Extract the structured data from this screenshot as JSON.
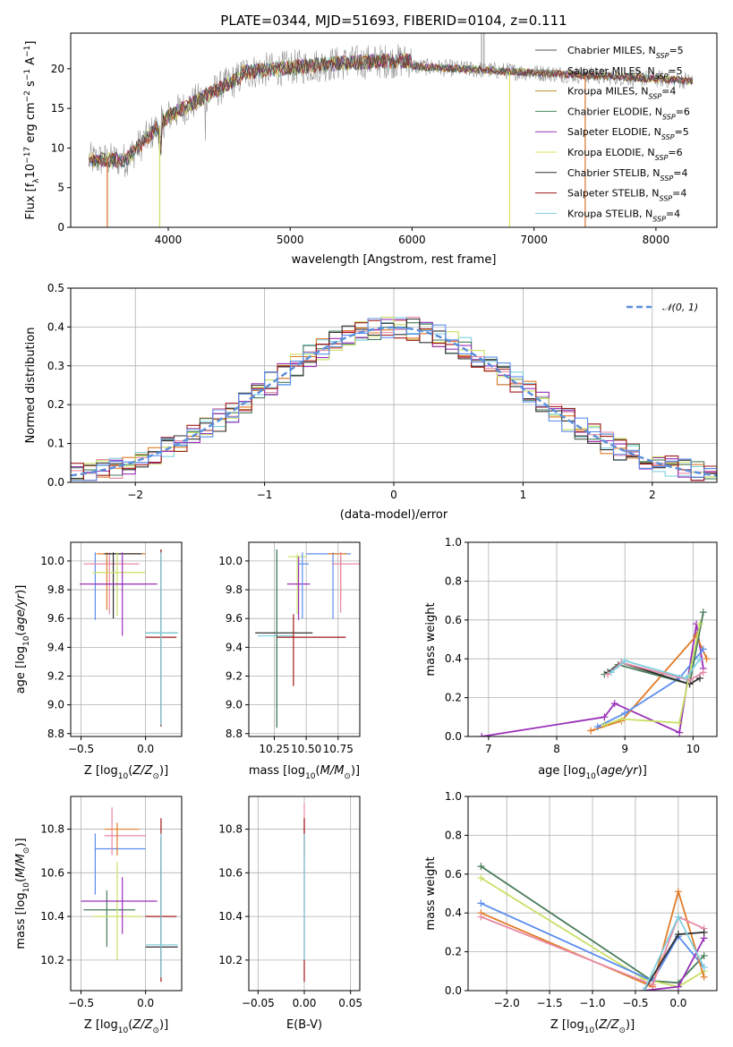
{
  "title": "PLATE=0344, MJD=51693, FIBERID=0104, z=0.111",
  "colors": [
    "#1f1f1f",
    "#808080",
    "#b8860b",
    "#2e8b57",
    "#9932cc",
    "#d4d400",
    "#333333",
    "#b22222",
    "#7fcfcf"
  ],
  "models": [
    {
      "name": "Chabrier MILES, N",
      "sub": "SSP",
      "suffix": "=5",
      "color": "#555555"
    },
    {
      "name": "Salpeter MILES, N",
      "sub": "SSP",
      "suffix": "=5",
      "color": "#999999"
    },
    {
      "name": "Kroupa MILES, N",
      "sub": "SSP",
      "suffix": "=4",
      "color": "#c0902a"
    },
    {
      "name": "Chabrier ELODIE, N",
      "sub": "SSP",
      "suffix": "=6",
      "color": "#4a8a5a"
    },
    {
      "name": "Salpeter ELODIE, N",
      "sub": "SSP",
      "suffix": "=5",
      "color": "#9a30b8"
    },
    {
      "name": "Kroupa ELODIE, N",
      "sub": "SSP",
      "suffix": "=6",
      "color": "#e0e060"
    },
    {
      "name": "Chabrier STELIB, N",
      "sub": "SSP",
      "suffix": "=4",
      "color": "#303030"
    },
    {
      "name": "Salpeter STELIB, N",
      "sub": "SSP",
      "suffix": "=4",
      "color": "#a01818"
    },
    {
      "name": "Kroupa STELIB, N",
      "sub": "SSP",
      "suffix": "=4",
      "color": "#80d0e0"
    }
  ],
  "chart_data": [
    {
      "id": "spectrum",
      "type": "line",
      "xlabel": "wavelength [Angstrom, rest frame]",
      "ylabel": "Flux [f_λ10^-17 erg cm^-2 s^-1 A^-1]",
      "xlim": [
        3200,
        8500
      ],
      "ylim": [
        0,
        24.5
      ],
      "xticks": [
        4000,
        5000,
        6000,
        7000,
        8000
      ],
      "yticks": [
        0,
        5,
        10,
        15,
        20
      ],
      "x_range": [
        3350,
        8300
      ],
      "legend": "right",
      "grid": false
    },
    {
      "id": "residuals",
      "type": "line",
      "xlabel": "(data-model)/error",
      "ylabel": "Normed distribution",
      "xlim": [
        -2.5,
        2.5
      ],
      "ylim": [
        0,
        0.5
      ],
      "xticks": [
        -2,
        -1,
        0,
        1,
        2
      ],
      "xtick_labels": [
        "−2",
        "−1",
        "0",
        "1",
        "2"
      ],
      "yticks": [
        0.0,
        0.1,
        0.2,
        0.3,
        0.4,
        0.5
      ],
      "ytick_labels": [
        "0.0",
        "0.1",
        "0.2",
        "0.3",
        "0.4",
        "0.5"
      ],
      "legend_label": "𝒩(0, 1)",
      "legend": "top-right",
      "grid": true
    },
    {
      "id": "age-vs-Z",
      "type": "scatter",
      "xlabel": "Z [log10(Z/Z⊙)]",
      "ylabel": "age [log10(age/yr)]",
      "xlim": [
        -0.58,
        0.28
      ],
      "ylim": [
        8.78,
        10.13
      ],
      "xticks": [
        -0.5,
        0.0
      ],
      "xtick_labels": [
        "−0.5",
        "0.0"
      ],
      "yticks": [
        8.8,
        9.0,
        9.2,
        9.4,
        9.6,
        9.8,
        10.0
      ],
      "ytick_labels": [
        "8.8",
        "9.0",
        "9.2",
        "9.4",
        "9.6",
        "9.8",
        "10.0"
      ],
      "grid": true,
      "points": [
        {
          "x": -0.39,
          "xerr": 0.0,
          "y": 9.84,
          "yerr": 0.25,
          "xl": -0.39,
          "xr": -0.0,
          "yb": 9.59,
          "yt": 10.06,
          "c": 0
        },
        {
          "x": -0.3,
          "xl": -0.38,
          "xr": -0.0,
          "y": 10.05,
          "yb": 9.66,
          "yt": 10.06,
          "c": 2
        },
        {
          "x": -0.28,
          "xl": -0.48,
          "xr": -0.05,
          "y": 9.98,
          "yb": 9.63,
          "yt": 10.06,
          "c": 1
        },
        {
          "x": -0.25,
          "xl": -0.32,
          "xr": -0.03,
          "y": 10.05,
          "yb": 9.6,
          "yt": 10.06,
          "c": 6
        },
        {
          "x": -0.22,
          "xl": -0.41,
          "xr": -0.0,
          "y": 9.92,
          "yb": 9.62,
          "yt": 10.06,
          "c": 5
        },
        {
          "x": -0.18,
          "xl": -0.51,
          "xr": 0.09,
          "y": 9.84,
          "yb": 9.48,
          "yt": 10.06,
          "c": 4
        },
        {
          "x": 0.12,
          "xl": 0.0,
          "xr": 0.25,
          "y": 9.5,
          "yb": 8.85,
          "yt": 10.08,
          "c": 3
        },
        {
          "x": 0.12,
          "xl": 0.0,
          "xr": 0.24,
          "y": 9.47,
          "yb": 8.85,
          "yt": 10.08,
          "c": 7
        },
        {
          "x": 0.12,
          "xl": 0.0,
          "xr": 0.25,
          "y": 9.5,
          "yb": 8.86,
          "yt": 10.06,
          "c": 8
        }
      ]
    },
    {
      "id": "age-vs-mass",
      "type": "scatter",
      "xlabel": "mass [log10(M/M⊙)]",
      "ylabel": "",
      "xlim": [
        10.05,
        10.92
      ],
      "ylim": [
        8.78,
        10.13
      ],
      "xticks": [
        10.25,
        10.5,
        10.75
      ],
      "xtick_labels": [
        "10.25",
        "10.50",
        "10.75"
      ],
      "yticks": [
        8.8,
        9.0,
        9.2,
        9.4,
        9.6,
        9.8,
        10.0
      ],
      "ytick_labels": [
        "8.8",
        "9.0",
        "9.2",
        "9.4",
        "9.6",
        "9.8",
        "10.0"
      ],
      "grid": true,
      "points": [
        {
          "x": 10.27,
          "xl": 10.1,
          "xr": 10.55,
          "y": 9.5,
          "yb": 8.85,
          "yt": 10.08,
          "c": 6
        },
        {
          "x": 10.27,
          "xl": 10.12,
          "xr": 10.4,
          "y": 9.48,
          "yb": 8.86,
          "yt": 10.08,
          "c": 8
        },
        {
          "x": 10.27,
          "xl": 10.27,
          "xr": 10.27,
          "y": 9.5,
          "yb": 8.84,
          "yt": 10.08,
          "c": 3
        },
        {
          "x": 10.4,
          "xl": 10.27,
          "xr": 10.81,
          "y": 9.47,
          "yb": 9.13,
          "yt": 9.63,
          "c": 7
        },
        {
          "x": 10.43,
          "xl": 10.36,
          "xr": 10.5,
          "y": 10.03,
          "yb": 9.63,
          "yt": 10.05,
          "c": 5
        },
        {
          "x": 10.44,
          "xl": 10.35,
          "xr": 10.53,
          "y": 9.84,
          "yb": 9.59,
          "yt": 10.03,
          "c": 4
        },
        {
          "x": 10.47,
          "xl": 10.44,
          "xr": 10.52,
          "y": 9.98,
          "yb": 9.6,
          "yt": 10.06,
          "c": 0
        },
        {
          "x": 10.71,
          "xl": 10.5,
          "xr": 10.85,
          "y": 10.05,
          "yb": 9.6,
          "yt": 10.06,
          "c": 0
        },
        {
          "x": 10.77,
          "xl": 10.67,
          "xr": 10.82,
          "y": 10.05,
          "yb": 9.72,
          "yt": 10.06,
          "c": 2
        },
        {
          "x": 10.77,
          "xl": 10.7,
          "xr": 10.92,
          "y": 9.98,
          "yb": 9.64,
          "yt": 10.06,
          "c": 1
        }
      ]
    },
    {
      "id": "mass-weight-vs-age",
      "type": "line",
      "xlabel": "age [log10(age/yr)]",
      "ylabel": "mass weight",
      "xlim": [
        6.7,
        10.35
      ],
      "ylim": [
        0,
        1.0
      ],
      "xticks": [
        7,
        8,
        9,
        10
      ],
      "xtick_labels": [
        "7",
        "8",
        "9",
        "10"
      ],
      "yticks": [
        0.0,
        0.2,
        0.4,
        0.6,
        0.8,
        1.0
      ],
      "ytick_labels": [
        "0.0",
        "0.2",
        "0.4",
        "0.6",
        "0.8",
        "1.0"
      ],
      "grid": true,
      "series": [
        {
          "c": 4,
          "x": [
            6.9,
            8.7,
            8.85,
            9.8,
            10.05,
            10.15
          ],
          "y": [
            0.0,
            0.1,
            0.17,
            0.02,
            0.58,
            0.35
          ]
        },
        {
          "c": 2,
          "x": [
            8.5,
            8.95,
            10.05,
            10.2
          ],
          "y": [
            0.03,
            0.08,
            0.52,
            0.4
          ]
        },
        {
          "c": 0,
          "x": [
            8.6,
            9.0,
            9.8,
            10.15
          ],
          "y": [
            0.05,
            0.12,
            0.3,
            0.45
          ]
        },
        {
          "c": 3,
          "x": [
            8.7,
            8.9,
            9.95,
            10.15
          ],
          "y": [
            0.32,
            0.37,
            0.27,
            0.64
          ]
        },
        {
          "c": 6,
          "x": [
            8.75,
            8.95,
            9.95,
            10.1
          ],
          "y": [
            0.33,
            0.38,
            0.27,
            0.3
          ]
        },
        {
          "c": 5,
          "x": [
            8.7,
            8.95,
            9.8,
            10.1
          ],
          "y": [
            0.06,
            0.09,
            0.07,
            0.58
          ]
        },
        {
          "c": 1,
          "x": [
            8.75,
            8.95,
            9.95,
            10.15
          ],
          "y": [
            0.32,
            0.38,
            0.29,
            0.33
          ]
        },
        {
          "c": 8,
          "x": [
            8.8,
            9.0,
            9.9,
            10.1
          ],
          "y": [
            0.33,
            0.39,
            0.3,
            0.4
          ]
        }
      ]
    },
    {
      "id": "mass-vs-Z",
      "type": "scatter",
      "xlabel": "Z [log10(Z/Z⊙)]",
      "ylabel": "mass [log10(M/M⊙)]",
      "xlim": [
        -0.58,
        0.28
      ],
      "ylim": [
        10.06,
        10.95
      ],
      "xticks": [
        -0.5,
        0.0
      ],
      "xtick_labels": [
        "−0.5",
        "0.0"
      ],
      "yticks": [
        10.2,
        10.4,
        10.6,
        10.8
      ],
      "ytick_labels": [
        "10.2",
        "10.4",
        "10.6",
        "10.8"
      ],
      "grid": true,
      "points": [
        {
          "x": -0.39,
          "xl": -0.39,
          "xr": -0.0,
          "y": 10.71,
          "yb": 10.5,
          "yt": 10.78,
          "c": 0
        },
        {
          "x": -0.26,
          "xl": -0.32,
          "xr": -0.0,
          "y": 10.77,
          "yb": 10.68,
          "yt": 10.9,
          "c": 1
        },
        {
          "x": -0.22,
          "xl": -0.32,
          "xr": -0.05,
          "y": 10.8,
          "yb": 10.68,
          "yt": 10.83,
          "c": 2
        },
        {
          "x": -0.3,
          "xl": -0.48,
          "xr": -0.08,
          "y": 10.43,
          "yb": 10.26,
          "yt": 10.52,
          "c": 3
        },
        {
          "x": -0.22,
          "xl": -0.41,
          "xr": -0.03,
          "y": 10.4,
          "yb": 10.2,
          "yt": 10.65,
          "c": 5
        },
        {
          "x": -0.18,
          "xl": -0.5,
          "xr": 0.09,
          "y": 10.47,
          "yb": 10.32,
          "yt": 10.58,
          "c": 4
        },
        {
          "x": 0.12,
          "xl": 0.0,
          "xr": 0.24,
          "y": 10.4,
          "yb": 10.1,
          "yt": 10.85,
          "c": 7
        },
        {
          "x": 0.12,
          "xl": 0.0,
          "xr": 0.25,
          "y": 10.26,
          "yb": 10.12,
          "yt": 10.76,
          "c": 6
        },
        {
          "x": 0.12,
          "xl": 0.0,
          "xr": 0.25,
          "y": 10.27,
          "yb": 10.12,
          "yt": 10.78,
          "c": 8
        }
      ]
    },
    {
      "id": "mass-vs-EBV",
      "type": "scatter",
      "xlabel": "E(B-V)",
      "ylabel": "",
      "xlim": [
        -0.06,
        0.06
      ],
      "ylim": [
        10.06,
        10.95
      ],
      "xticks": [
        -0.05,
        0.0,
        0.05
      ],
      "xtick_labels": [
        "−0.05",
        "0.00",
        "0.05"
      ],
      "yticks": [
        10.2,
        10.4,
        10.6,
        10.8
      ],
      "ytick_labels": [
        "10.2",
        "10.4",
        "10.6",
        "10.8"
      ],
      "grid": true,
      "points": [
        {
          "x": 0.0,
          "xl": 0.0,
          "xr": 0.0,
          "y": 10.77,
          "yb": 10.68,
          "yt": 10.92,
          "c": 1
        },
        {
          "x": 0.0,
          "xl": 0.0,
          "xr": 0.0,
          "y": 10.76,
          "yb": 10.1,
          "yt": 10.85,
          "c": 7
        },
        {
          "x": 0.0,
          "xl": 0.0,
          "xr": 0.0,
          "y": 10.4,
          "yb": 10.2,
          "yt": 10.78,
          "c": 8
        }
      ]
    },
    {
      "id": "mass-weight-vs-Z",
      "type": "line",
      "xlabel": "Z [log10(Z/Z⊙)]",
      "ylabel": "mass weight",
      "xlim": [
        -2.45,
        0.45
      ],
      "ylim": [
        0,
        1.0
      ],
      "xticks": [
        -2.0,
        -1.5,
        -1.0,
        -0.5,
        0.0
      ],
      "xtick_labels": [
        "−2.0",
        "−1.5",
        "−1.0",
        "−0.5",
        "0.0"
      ],
      "yticks": [
        0.0,
        0.2,
        0.4,
        0.6,
        0.8,
        1.0
      ],
      "ytick_labels": [
        "0.0",
        "0.2",
        "0.4",
        "0.6",
        "0.8",
        "1.0"
      ],
      "grid": true,
      "series": [
        {
          "c": 3,
          "x": [
            -2.3,
            -0.3,
            0.0,
            0.3
          ],
          "y": [
            0.64,
            0.05,
            0.04,
            0.18
          ]
        },
        {
          "c": 5,
          "x": [
            -2.3,
            -0.4,
            0.0,
            0.3
          ],
          "y": [
            0.58,
            0.06,
            0.02,
            0.1
          ]
        },
        {
          "c": 0,
          "x": [
            -2.3,
            -0.3,
            0.0,
            0.3
          ],
          "y": [
            0.45,
            0.05,
            0.28,
            0.12
          ]
        },
        {
          "c": 2,
          "x": [
            -2.3,
            -0.3,
            0.0,
            0.3
          ],
          "y": [
            0.4,
            0.02,
            0.51,
            0.07
          ]
        },
        {
          "c": 1,
          "x": [
            -2.3,
            -0.3,
            0.0,
            0.3
          ],
          "y": [
            0.38,
            0.03,
            0.38,
            0.32
          ]
        },
        {
          "c": 4,
          "x": [
            -0.4,
            0.0,
            0.3
          ],
          "y": [
            0.0,
            0.02,
            0.27
          ]
        },
        {
          "c": 6,
          "x": [
            -0.4,
            0.0,
            0.3
          ],
          "y": [
            0.0,
            0.29,
            0.3
          ]
        },
        {
          "c": 8,
          "x": [
            -0.4,
            0.0,
            0.3
          ],
          "y": [
            0.0,
            0.38,
            0.12
          ]
        }
      ]
    }
  ]
}
